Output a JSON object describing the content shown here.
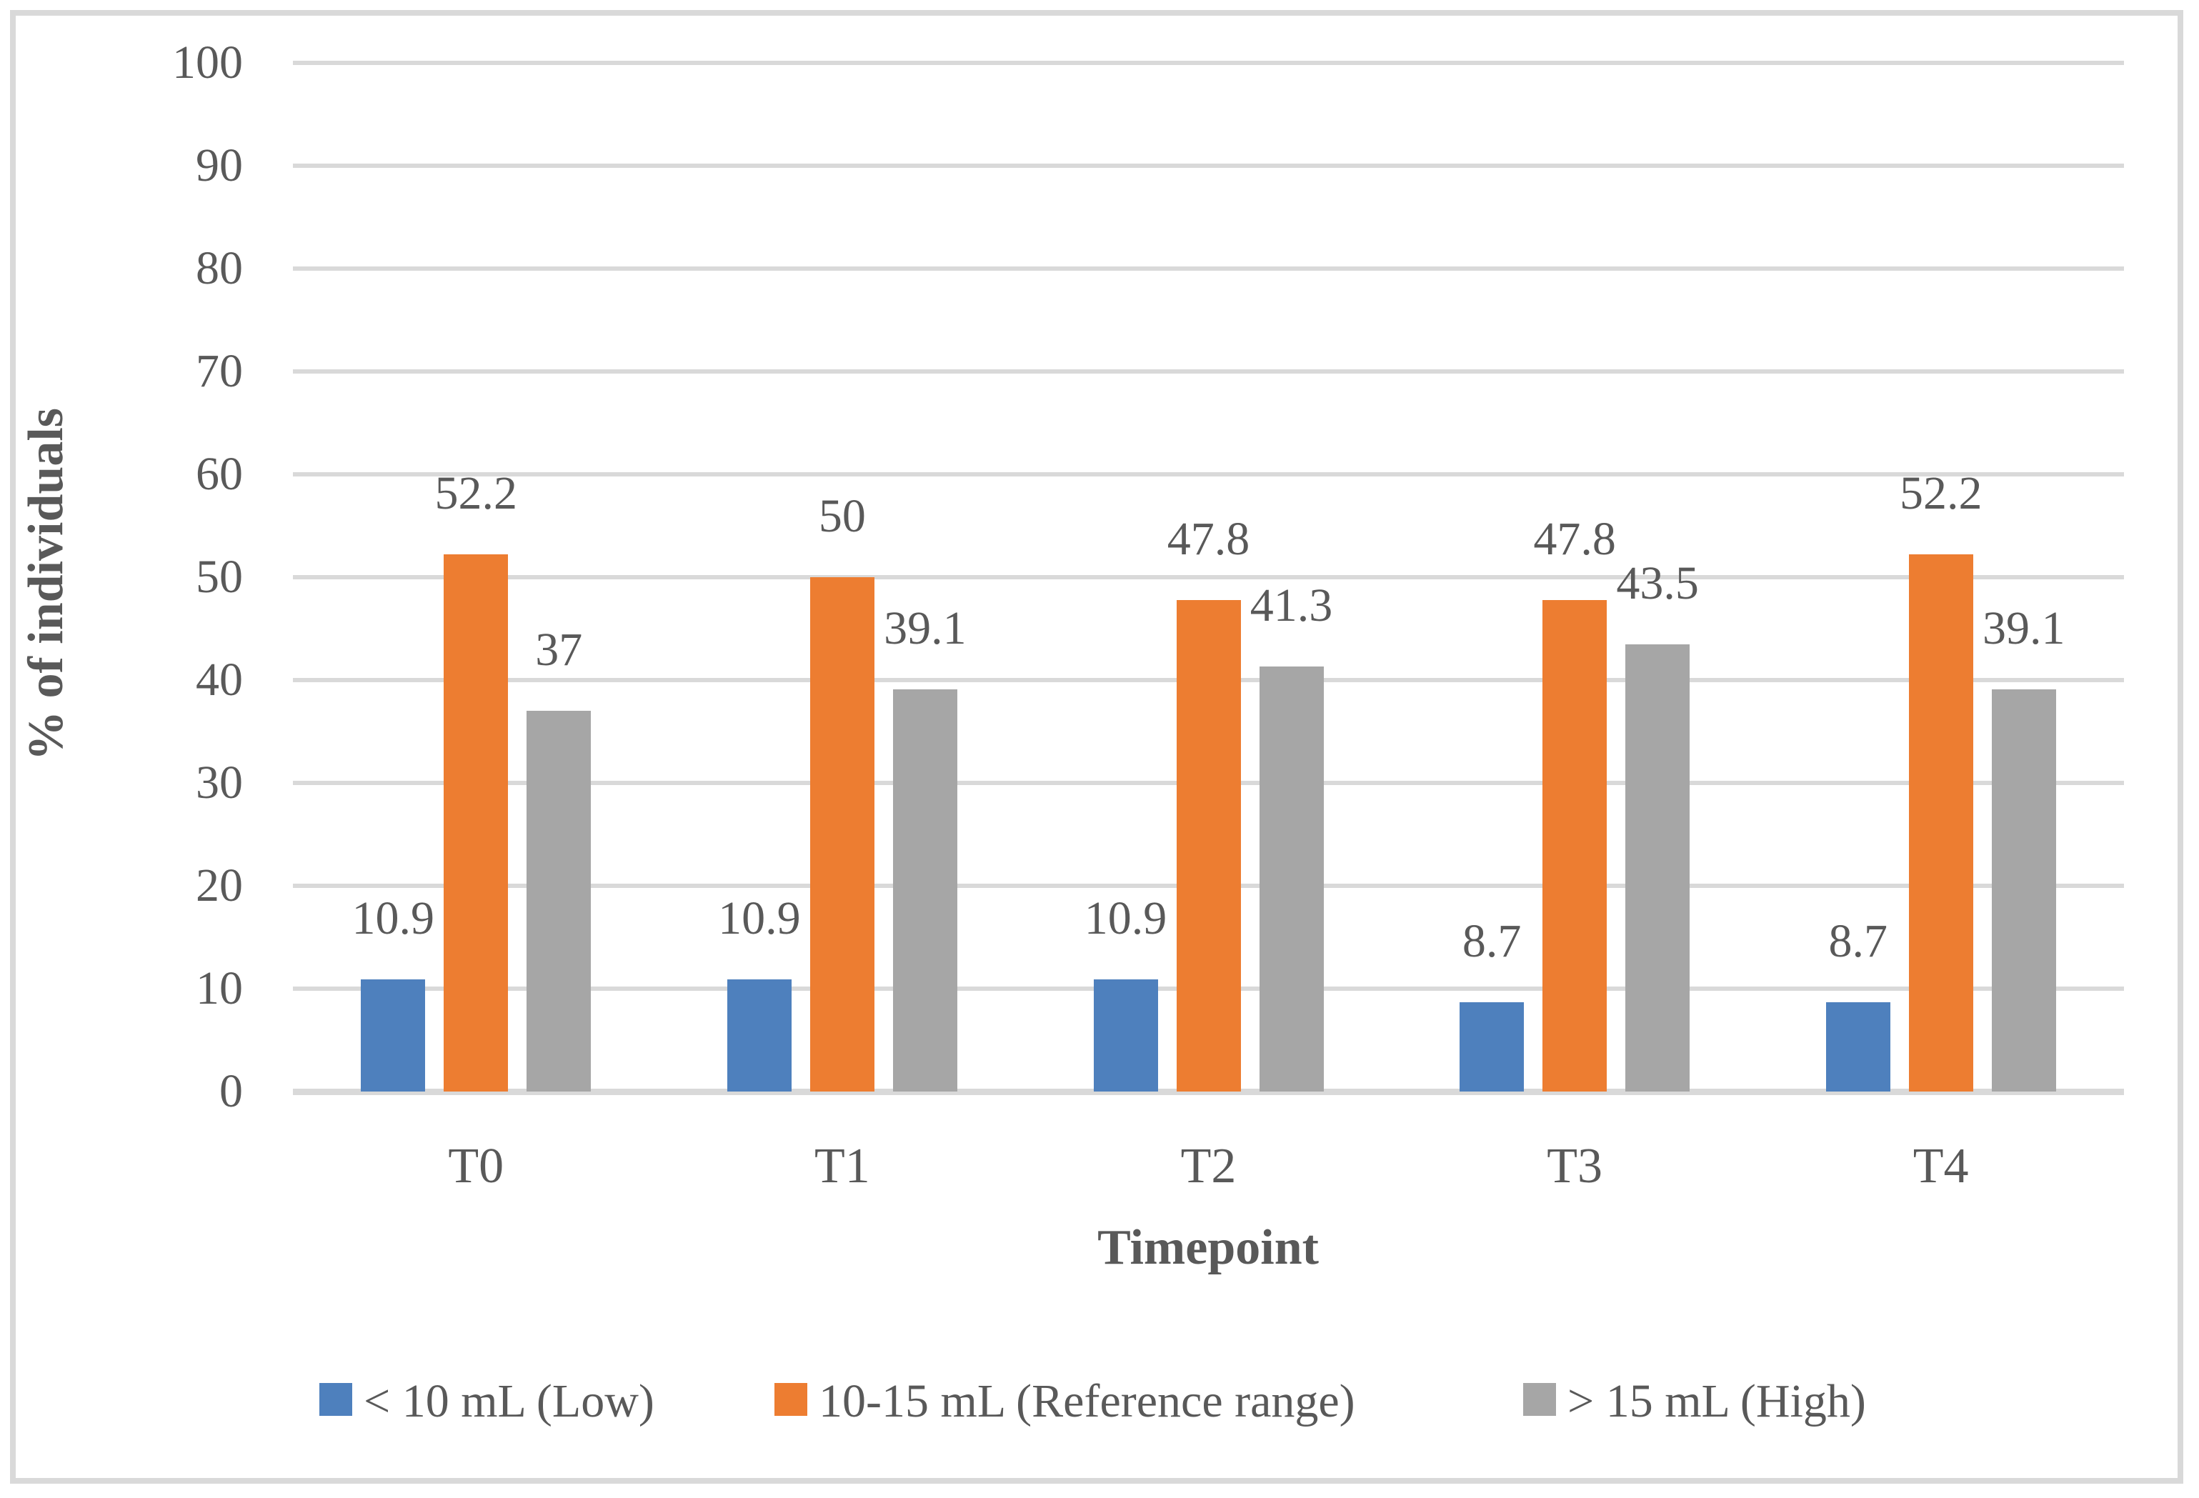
{
  "figure": {
    "y_axis_title": "% of individuals",
    "x_axis_title": "Timepoint"
  },
  "colors": {
    "series_low": "#4E80BD",
    "series_reference": "#ED7D31",
    "series_high": "#A6A6A6",
    "gridline": "#D9D9D9",
    "frame_border": "#D9D9D9",
    "text": "#595959"
  },
  "chart_data": {
    "type": "bar",
    "title": "",
    "xlabel": "Timepoint",
    "ylabel": "% of individuals",
    "categories": [
      "T0",
      "T1",
      "T2",
      "T3",
      "T4"
    ],
    "series": [
      {
        "name": "< 10 mL (Low)",
        "color": "#4E80BD",
        "values": [
          10.9,
          10.9,
          10.9,
          8.7,
          8.7
        ]
      },
      {
        "name": "10-15 mL (Reference range)",
        "color": "#ED7D31",
        "values": [
          52.2,
          50,
          47.8,
          47.8,
          52.2
        ]
      },
      {
        "name": "> 15 mL (High)",
        "color": "#A6A6A6",
        "values": [
          37,
          39.1,
          41.3,
          43.5,
          39.1
        ]
      }
    ],
    "ylim": [
      0,
      100
    ],
    "yticks": [
      0,
      10,
      20,
      30,
      40,
      50,
      60,
      70,
      80,
      90,
      100
    ],
    "grid": true,
    "data_labels": true,
    "legend_position": "bottom"
  }
}
